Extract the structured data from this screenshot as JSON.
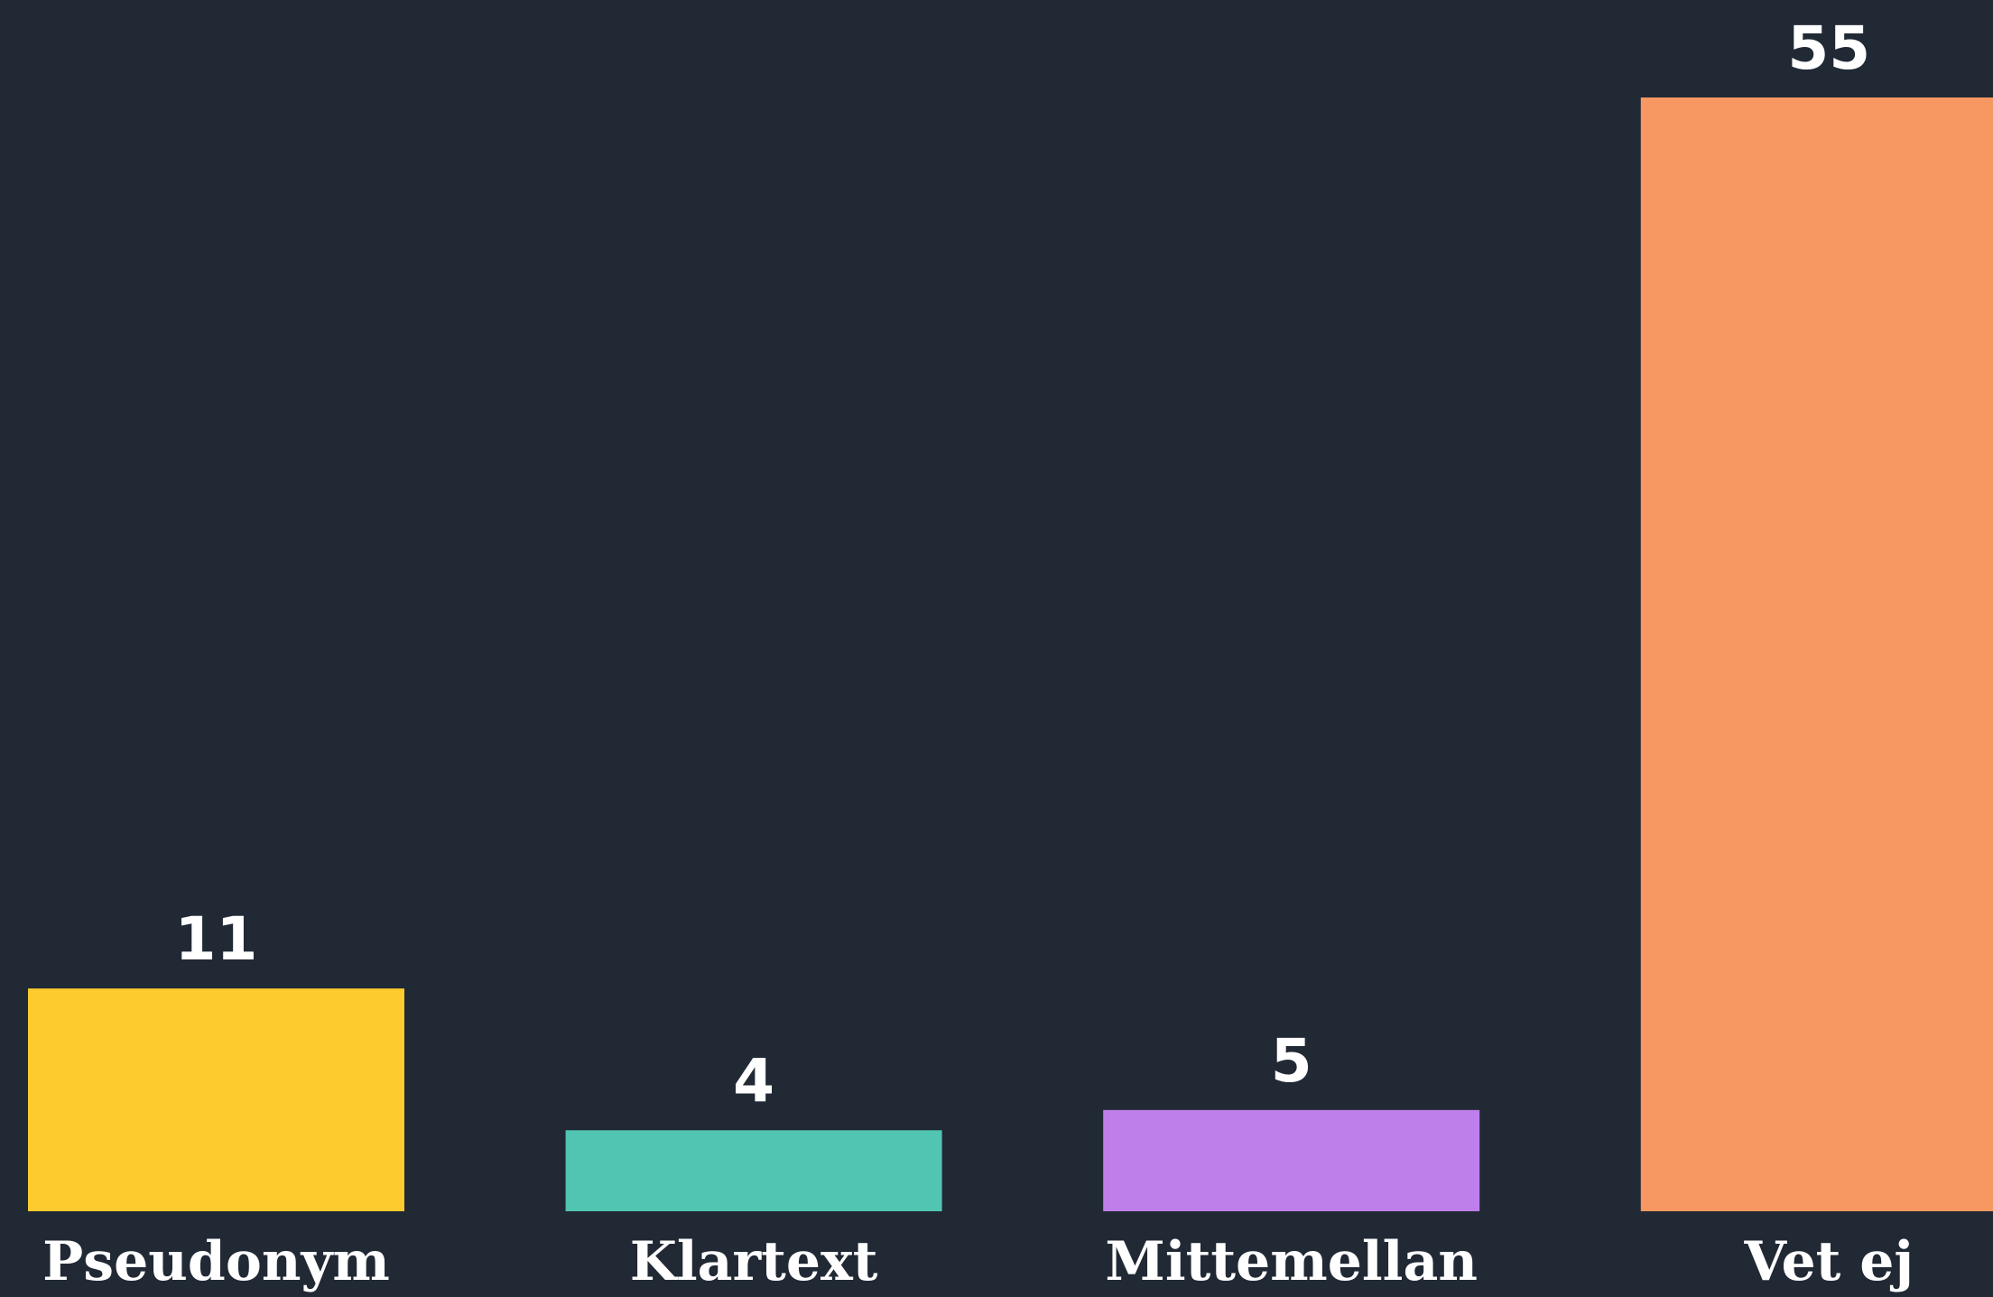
{
  "chart_data": {
    "type": "bar",
    "categories": [
      "Pseudonym",
      "Klartext",
      "Mittemellan",
      "Vet ej"
    ],
    "values": [
      11,
      4,
      5,
      55
    ],
    "colors": [
      "#fecb2f",
      "#52c5b2",
      "#bf7fea",
      "#f79862"
    ],
    "ylim": [
      0,
      55
    ]
  }
}
